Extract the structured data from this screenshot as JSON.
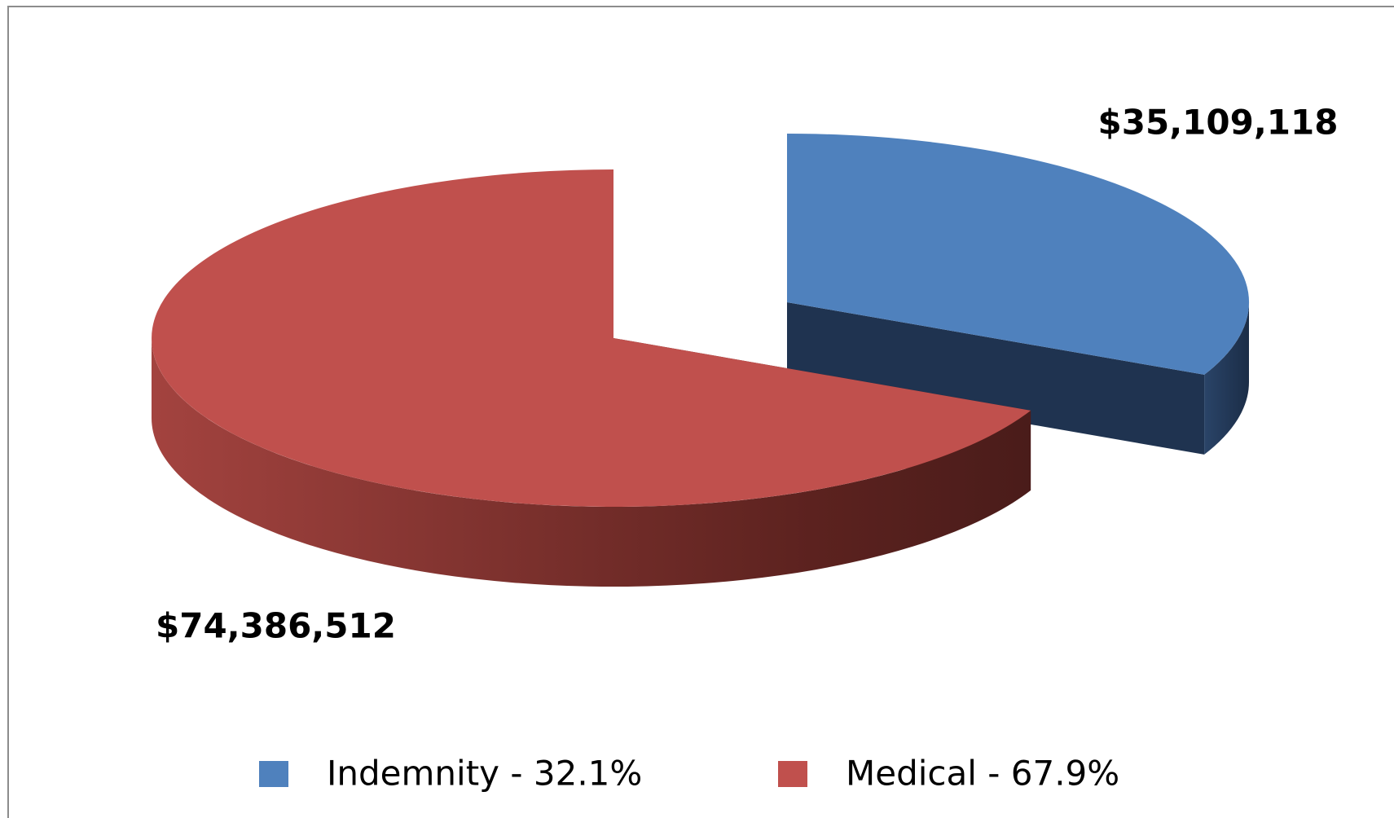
{
  "chart_data": {
    "type": "pie",
    "categories": [
      "Indemnity - 32.1%",
      "Medical - 67.9%"
    ],
    "values": [
      35109118,
      74386512
    ],
    "value_labels": [
      "$35,109,118",
      "$74,386,512"
    ],
    "colors": [
      "#4f81bd",
      "#c0504d"
    ],
    "legend": "bottom"
  }
}
